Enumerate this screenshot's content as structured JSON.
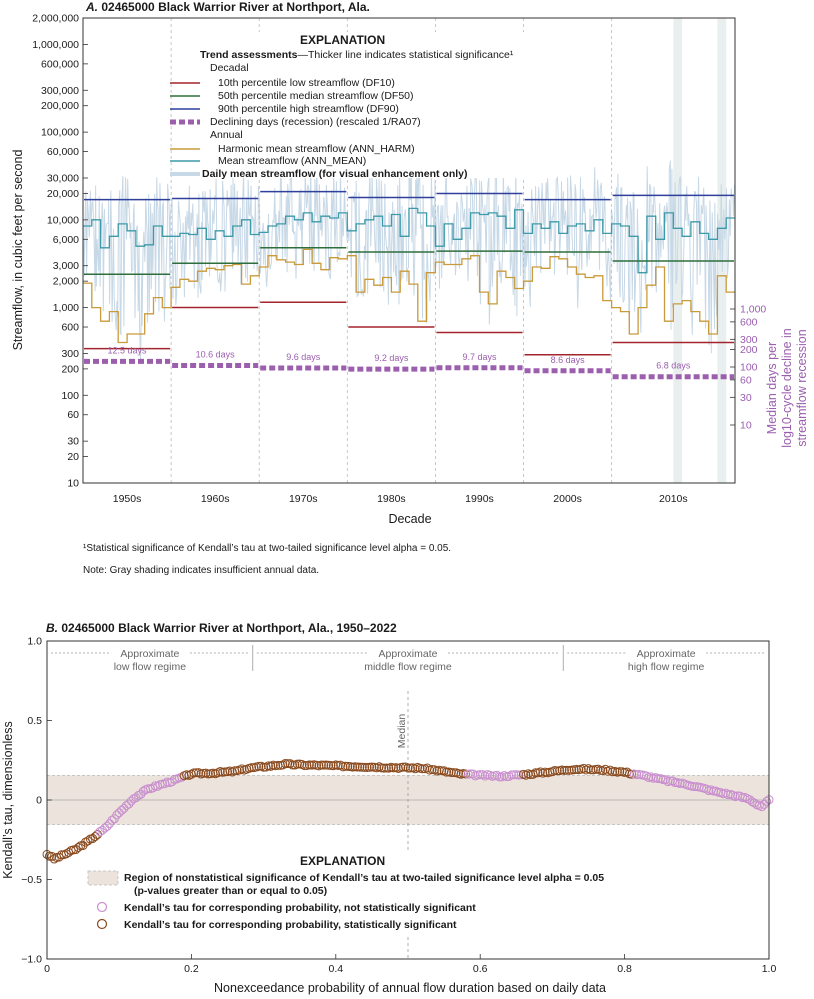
{
  "figure": {
    "panel_a_letter": "A.",
    "panel_a_title": "02465000 Black Warrior River at Northport, Ala.",
    "panel_b_letter": "B.",
    "panel_b_title": "02465000 Black Warrior River at Northport, Ala., 1950–2022",
    "footnote": "¹Statistical significance of Kendall’s tau at two-tailed significance level alpha = 0.05.",
    "note": "Note: Gray shading indicates insufficient annual data."
  },
  "legend_a": {
    "header": "EXPLANATION",
    "trend_bold": "Trend assessments",
    "trend_rest": "—Thicker line indicates statistical significance¹",
    "decadal": "Decadal",
    "df10": "10th percentile low streamflow (DF10)",
    "df50": "50th percentile median streamflow (DF50)",
    "df90": "90th percentile high streamflow (DF90)",
    "ra07": "Declining days (recession) (rescaled 1/RA07)",
    "annual": "Annual",
    "harm": "Harmonic mean streamflow (ANN_HARM)",
    "mean": "Mean streamflow (ANN_MEAN)",
    "daily": "Daily mean streamflow (for visual enhancement only)"
  },
  "legend_b": {
    "header": "EXPLANATION",
    "region_line1": "Region of nonstatistical significance of Kendall’s tau at two-tailed significance level alpha = 0.05",
    "region_line2": "(p-values greater than or equal to 0.05)",
    "nonsig": "Kendall’s tau for corresponding probability, not statistically significant",
    "sig": "Kendall’s tau for corresponding probability, statistically significant"
  },
  "colors": {
    "df10": "#a3242c",
    "df50": "#2e6e3c",
    "df90": "#2f3f9c",
    "ra07": "#9b5fae",
    "harm": "#c99a3a",
    "mean": "#3d9aa8",
    "daily": "#c7d8e6",
    "shade": "#e8efee",
    "nonsig_band": "#ece4dc",
    "nonsig_point": "#c98fce",
    "sig_point": "#8a4a1e"
  },
  "chart_data": [
    {
      "type": "line",
      "title": "02465000 Black Warrior River at Northport, Ala.",
      "xlabel": "Decade",
      "ylabel": "Streamflow, in cubic feet per second",
      "y2label": [
        "Median days per",
        "log10-cycle decline in",
        "streamflow recession"
      ],
      "y_scale": "log",
      "ylim": [
        10,
        2000000
      ],
      "xlim": [
        1945,
        2019
      ],
      "yticks": [
        10,
        20,
        30,
        60,
        100,
        200,
        300,
        600,
        1000,
        2000,
        3000,
        6000,
        10000,
        20000,
        30000,
        60000,
        100000,
        200000,
        300000,
        600000,
        1000000,
        2000000
      ],
      "ytick_labels": [
        "10",
        "20",
        "30",
        "60",
        "100",
        "200",
        "300",
        "600",
        "1,000",
        "2,000",
        "3,000",
        "6,000",
        "10,000",
        "20,000",
        "30,000",
        "60,000",
        "100,000",
        "200,000",
        "300,000",
        "600,000",
        "1,000,000",
        "2,000,000"
      ],
      "y2ticks": [
        10,
        30,
        60,
        100,
        200,
        300,
        600,
        1000
      ],
      "y2tick_labels": [
        "10",
        "30",
        "60",
        "100",
        "200",
        "300",
        "600",
        "1,000"
      ],
      "decades": [
        "1950s",
        "1960s",
        "1970s",
        "1980s",
        "1990s",
        "2000s",
        "2010s"
      ],
      "decade_bounds": [
        1945,
        1955,
        1965,
        1975,
        1985,
        1995,
        2005,
        2019
      ],
      "shaded_years": [
        [
          2012,
          2013
        ],
        [
          2017,
          2018
        ]
      ],
      "DF10": [
        340,
        1000,
        1150,
        600,
        520,
        290,
        400
      ],
      "DF50": [
        2400,
        3200,
        4800,
        4300,
        4400,
        4300,
        3400
      ],
      "DF90": [
        17000,
        17500,
        21000,
        18000,
        20000,
        17000,
        19000
      ],
      "RA07_days": [
        12.5,
        10.6,
        9.6,
        9.2,
        9.7,
        8.6,
        6.8
      ],
      "RA07_labels": [
        "12.5 days",
        "10.6 days",
        "9.6 days",
        "9.2 days",
        "9.7 days",
        "8.6 days",
        "6.8 days"
      ],
      "years": [
        1945,
        1946,
        1947,
        1948,
        1949,
        1950,
        1951,
        1952,
        1953,
        1954,
        1955,
        1956,
        1957,
        1958,
        1959,
        1960,
        1961,
        1962,
        1963,
        1964,
        1965,
        1966,
        1967,
        1968,
        1969,
        1970,
        1971,
        1972,
        1973,
        1974,
        1975,
        1976,
        1977,
        1978,
        1979,
        1980,
        1981,
        1982,
        1983,
        1984,
        1985,
        1986,
        1987,
        1988,
        1989,
        1990,
        1991,
        1992,
        1993,
        1994,
        1995,
        1996,
        1997,
        1998,
        1999,
        2000,
        2001,
        2002,
        2003,
        2004,
        2005,
        2006,
        2007,
        2008,
        2009,
        2010,
        2011,
        2012,
        2013,
        2014,
        2015,
        2016,
        2017,
        2018
      ],
      "ANN_MEAN": [
        8500,
        10000,
        4800,
        6500,
        9000,
        7500,
        5000,
        5200,
        8500,
        6500,
        6500,
        7000,
        6800,
        8000,
        6000,
        7500,
        6500,
        8500,
        10000,
        6800,
        7200,
        8500,
        9000,
        11000,
        10000,
        12000,
        9500,
        11000,
        10500,
        12000,
        7500,
        9000,
        10000,
        11000,
        8500,
        11500,
        6500,
        13500,
        12000,
        8500,
        5000,
        9000,
        6000,
        8000,
        12000,
        11500,
        12000,
        11000,
        8000,
        13000,
        7000,
        9000,
        8000,
        9500,
        7000,
        8500,
        9000,
        7500,
        10000,
        7000,
        9000,
        8500,
        6500,
        2500,
        11000,
        6000,
        12000,
        8000,
        6500,
        9500,
        7000,
        6000,
        8000,
        10500
      ],
      "ANN_HARM": [
        1900,
        1000,
        700,
        900,
        400,
        500,
        500,
        850,
        1300,
        1000,
        1700,
        2100,
        2000,
        2600,
        2800,
        2700,
        3000,
        3100,
        1850,
        2300,
        2900,
        3900,
        3500,
        3300,
        3100,
        4600,
        3200,
        2700,
        3700,
        3600,
        3900,
        1500,
        2100,
        1800,
        2200,
        1500,
        2600,
        1850,
        700,
        2500,
        3300,
        3100,
        3100,
        3600,
        3900,
        1500,
        1100,
        2600,
        2200,
        1650,
        2000,
        2900,
        2800,
        3800,
        3600,
        2900,
        2400,
        2200,
        2300,
        1200,
        1000,
        900,
        500,
        1000,
        1800,
        2900,
        700,
        1100,
        1200,
        900,
        700,
        500,
        2300,
        1500
      ]
    },
    {
      "type": "scatter",
      "title": "02465000 Black Warrior River at Northport, Ala., 1950–2022",
      "xlabel": "Nonexceedance probability of annual flow duration based on daily data",
      "ylabel": "Kendall’s tau, dimensionless",
      "xlim": [
        0,
        1
      ],
      "ylim": [
        -1,
        1
      ],
      "xticks": [
        0,
        0.2,
        0.4,
        0.6,
        0.8,
        1
      ],
      "xtick_labels": [
        "0",
        "0.2",
        "0.4",
        "0.6",
        "0.8",
        "1.0"
      ],
      "yticks": [
        -1,
        -0.5,
        0,
        0.5,
        1
      ],
      "ytick_labels": [
        "−1.0",
        "−0.5",
        "0",
        "0.5",
        "1.0"
      ],
      "nonsignificance_band": [
        -0.155,
        0.155
      ],
      "median_x": 0.5,
      "median_label": "Median",
      "regime_dividers": [
        0.285,
        0.715
      ],
      "regimes": [
        [
          "Approximate",
          "low flow regime"
        ],
        [
          "Approximate",
          "middle flow regime"
        ],
        [
          "Approximate",
          "high flow regime"
        ]
      ],
      "curve_knots": [
        [
          0,
          -0.34
        ],
        [
          0.01,
          -0.37
        ],
        [
          0.02,
          -0.35
        ],
        [
          0.04,
          -0.31
        ],
        [
          0.06,
          -0.25
        ],
        [
          0.08,
          -0.18
        ],
        [
          0.1,
          -0.08
        ],
        [
          0.12,
          0.01
        ],
        [
          0.14,
          0.07
        ],
        [
          0.16,
          0.1
        ],
        [
          0.18,
          0.13
        ],
        [
          0.2,
          0.165
        ],
        [
          0.23,
          0.17
        ],
        [
          0.26,
          0.18
        ],
        [
          0.28,
          0.2
        ],
        [
          0.3,
          0.21
        ],
        [
          0.33,
          0.225
        ],
        [
          0.36,
          0.22
        ],
        [
          0.4,
          0.215
        ],
        [
          0.44,
          0.21
        ],
        [
          0.48,
          0.205
        ],
        [
          0.52,
          0.2
        ],
        [
          0.55,
          0.18
        ],
        [
          0.57,
          0.165
        ],
        [
          0.6,
          0.155
        ],
        [
          0.63,
          0.15
        ],
        [
          0.66,
          0.16
        ],
        [
          0.7,
          0.18
        ],
        [
          0.73,
          0.195
        ],
        [
          0.77,
          0.19
        ],
        [
          0.8,
          0.175
        ],
        [
          0.83,
          0.15
        ],
        [
          0.86,
          0.12
        ],
        [
          0.89,
          0.095
        ],
        [
          0.92,
          0.06
        ],
        [
          0.95,
          0.03
        ],
        [
          0.97,
          0.01
        ],
        [
          0.985,
          -0.03
        ],
        [
          0.99,
          -0.04
        ],
        [
          1.0,
          0.0
        ]
      ],
      "significant_ranges": [
        [
          0,
          0.07
        ],
        [
          0.19,
          0.58
        ],
        [
          0.66,
          0.81
        ]
      ]
    }
  ]
}
